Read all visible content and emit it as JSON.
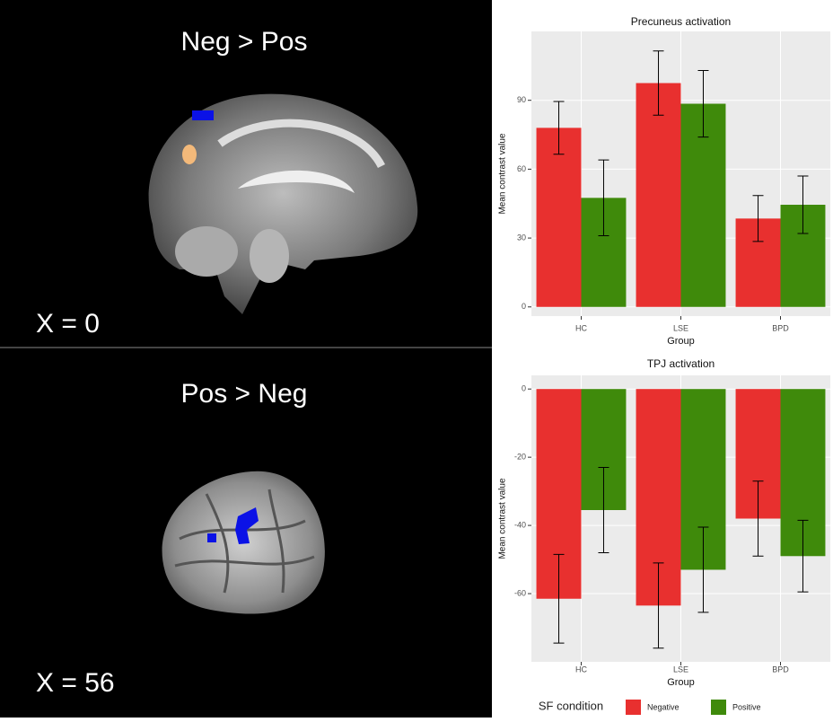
{
  "panels": [
    {
      "title": "Neg > Pos",
      "slice": "X = 0"
    },
    {
      "title": "Pos > Neg",
      "slice": "X = 56"
    }
  ],
  "chart_data": [
    {
      "type": "bar",
      "title": "Precuneus activation",
      "xlabel": "Group",
      "ylabel": "Mean contrast value",
      "categories": [
        "HC",
        "LSE",
        "BPD"
      ],
      "series": [
        {
          "name": "Negative",
          "color": "#e8302f",
          "values": [
            78,
            97.5,
            38.5
          ],
          "errors": [
            11.5,
            14,
            10
          ]
        },
        {
          "name": "Positive",
          "color": "#3f8a0b",
          "values": [
            47.5,
            88.5,
            44.5
          ],
          "errors": [
            16.5,
            14.5,
            12.5
          ]
        }
      ],
      "ylim": [
        -4,
        120
      ],
      "yticks": [
        0,
        30,
        60,
        90
      ],
      "grid": true,
      "legend_title": "SF condition"
    },
    {
      "type": "bar",
      "title": "TPJ activation",
      "xlabel": "Group",
      "ylabel": "Mean contrast value",
      "categories": [
        "HC",
        "LSE",
        "BPD"
      ],
      "series": [
        {
          "name": "Negative",
          "color": "#e8302f",
          "values": [
            -61.5,
            -63.5,
            -38
          ],
          "errors": [
            13,
            12.5,
            11
          ]
        },
        {
          "name": "Positive",
          "color": "#3f8a0b",
          "values": [
            -35.5,
            -53,
            -49
          ],
          "errors": [
            12.5,
            12.5,
            10.5
          ]
        }
      ],
      "ylim": [
        -80,
        4
      ],
      "yticks": [
        0,
        -20,
        -40,
        -60
      ],
      "grid": true
    }
  ]
}
